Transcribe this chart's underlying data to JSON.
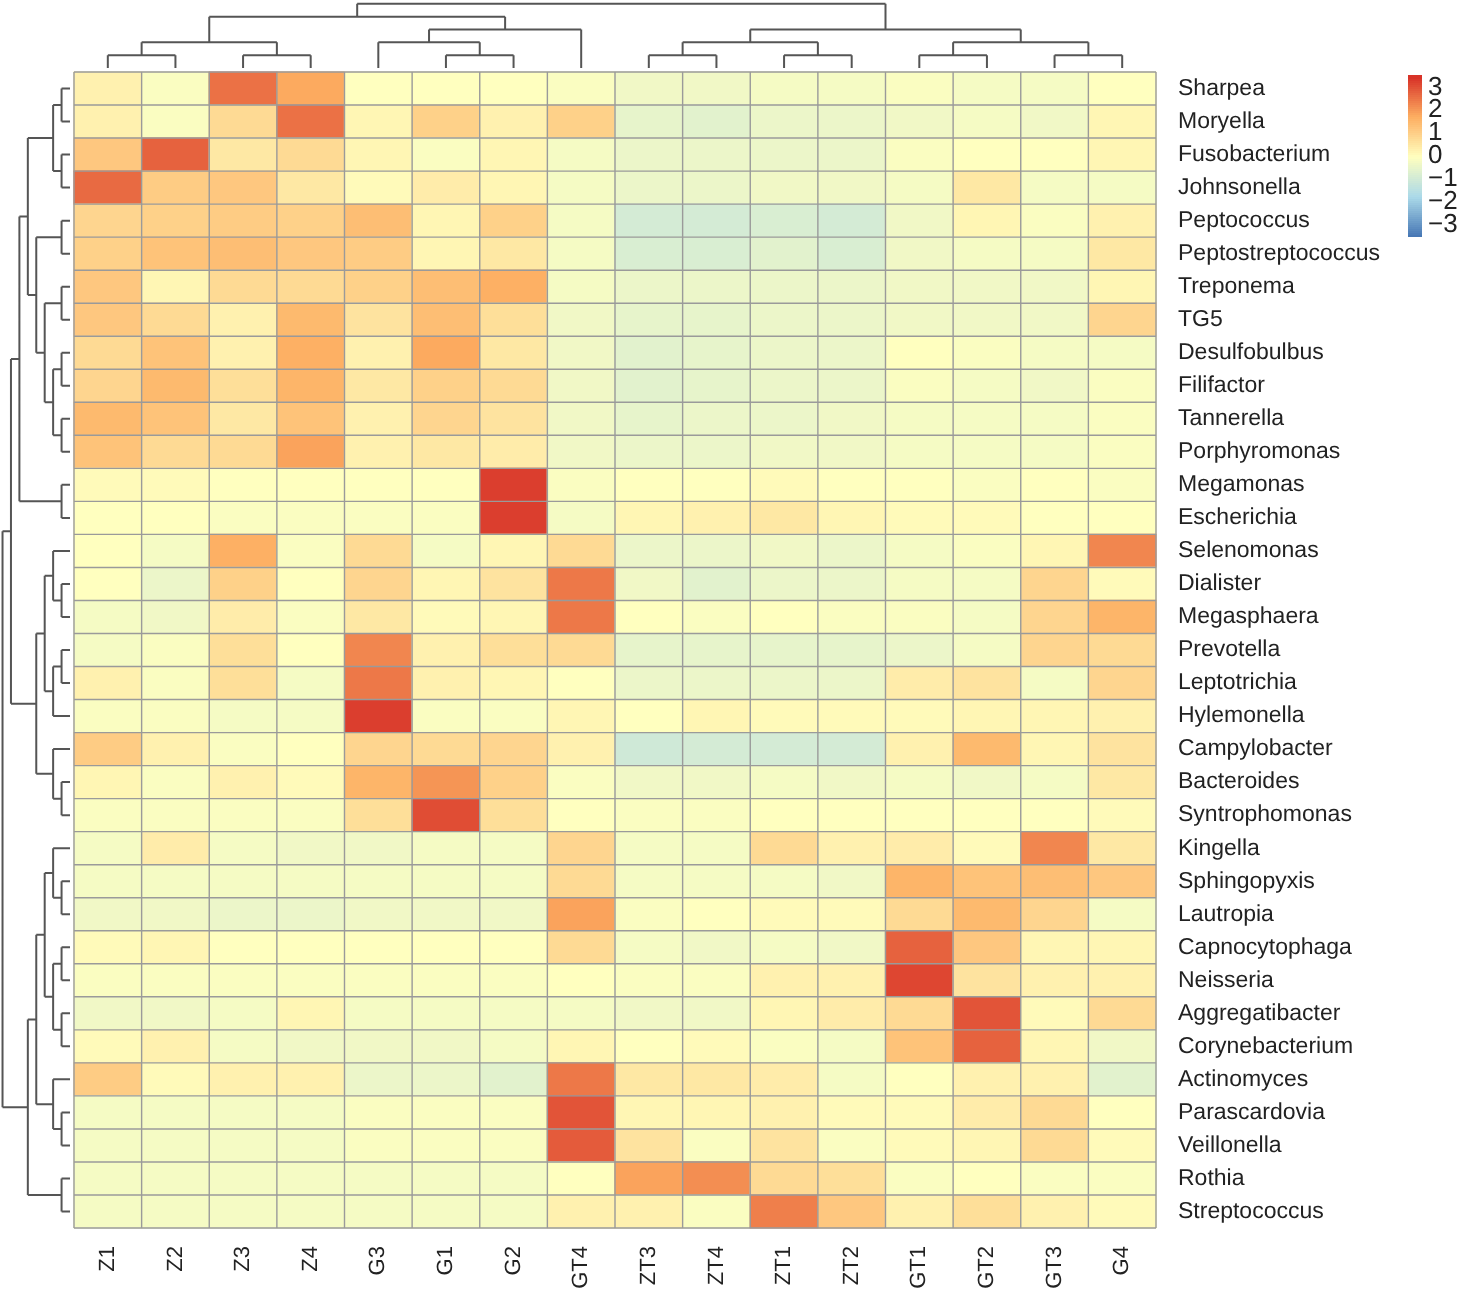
{
  "chart_data": {
    "type": "heatmap",
    "categories": [
      "Z1",
      "Z2",
      "Z3",
      "Z4",
      "G3",
      "G1",
      "G2",
      "GT4",
      "ZT3",
      "ZT4",
      "ZT1",
      "ZT2",
      "GT1",
      "GT2",
      "GT3",
      "G4"
    ],
    "y_categories": [
      "Sharpea",
      "Moryella",
      "Fusobacterium",
      "Johnsonella",
      "Peptococcus",
      "Peptostreptococcus",
      "Treponema",
      "TG5",
      "Desulfobulbus",
      "Filifactor",
      "Tannerella",
      "Porphyromonas",
      "Megamonas",
      "Escherichia",
      "Selenomonas",
      "Dialister",
      "Megasphaera",
      "Prevotella",
      "Leptotrichia",
      "Hylemonella",
      "Campylobacter",
      "Bacteroides",
      "Syntrophomonas",
      "Kingella",
      "Sphingopyxis",
      "Lautropia",
      "Capnocytophaga",
      "Neisseria",
      "Aggregatibacter",
      "Corynebacterium",
      "Actinomyces",
      "Parascardovia",
      "Veillonella",
      "Rothia",
      "Streptococcus"
    ],
    "cells": [
      [
        0.3,
        -0.1,
        2.6,
        1.8,
        0,
        0,
        0,
        -0.1,
        -0.3,
        -0.3,
        -0.2,
        -0.2,
        -0.1,
        -0.2,
        -0.2,
        0
      ],
      [
        0.3,
        -0.1,
        0.8,
        2.6,
        0.2,
        1,
        0.3,
        1,
        -0.5,
        -0.6,
        -0.4,
        -0.4,
        -0.3,
        -0.2,
        -0.3,
        0.2
      ],
      [
        1.2,
        2.8,
        0.5,
        0.8,
        0.2,
        -0.1,
        0.2,
        -0.2,
        -0.4,
        -0.4,
        -0.4,
        -0.4,
        -0.1,
        0,
        0,
        0.2
      ],
      [
        2.7,
        1.1,
        1.2,
        0.5,
        0.1,
        0.4,
        0.2,
        -0.2,
        -0.4,
        -0.4,
        -0.3,
        -0.3,
        -0.2,
        0.5,
        -0.2,
        -0.2
      ],
      [
        0.9,
        1,
        1.1,
        1,
        1.4,
        0.2,
        1,
        -0.2,
        -0.9,
        -0.9,
        -0.8,
        -0.9,
        -0.3,
        0.2,
        -0.1,
        0.3
      ],
      [
        1,
        1.3,
        1.4,
        1.2,
        1.1,
        0.2,
        0.5,
        -0.2,
        -0.8,
        -0.8,
        -0.6,
        -0.8,
        -0.3,
        -0.2,
        -0.2,
        0.5
      ],
      [
        1.2,
        0.2,
        0.8,
        0.8,
        1,
        1.4,
        1.7,
        -0.2,
        -0.4,
        -0.4,
        -0.4,
        -0.4,
        -0.3,
        -0.3,
        -0.3,
        0.2
      ],
      [
        1.2,
        0.8,
        0.3,
        1.5,
        0.6,
        1.4,
        0.7,
        -0.3,
        -0.5,
        -0.5,
        -0.4,
        -0.4,
        -0.3,
        -0.3,
        -0.3,
        0.9
      ],
      [
        0.8,
        1.3,
        0.3,
        1.7,
        0.3,
        1.8,
        0.5,
        -0.3,
        -0.6,
        -0.5,
        -0.4,
        -0.4,
        0,
        -0.1,
        -0.2,
        -0.2
      ],
      [
        0.9,
        1.5,
        0.7,
        1.6,
        0.5,
        1,
        0.8,
        -0.3,
        -0.6,
        -0.5,
        -0.4,
        -0.4,
        -0.1,
        -0.2,
        -0.3,
        -0.1
      ],
      [
        1.5,
        1.3,
        0.5,
        1.3,
        0.3,
        0.9,
        0.6,
        -0.3,
        -0.5,
        -0.4,
        -0.4,
        -0.3,
        -0.2,
        -0.2,
        -0.2,
        -0.1
      ],
      [
        1.3,
        0.8,
        0.8,
        1.9,
        0.3,
        0.5,
        0.4,
        -0.3,
        -0.4,
        -0.4,
        -0.3,
        -0.3,
        -0.2,
        -0.2,
        -0.2,
        -0.1
      ],
      [
        0.1,
        0.1,
        0,
        0,
        0,
        0,
        3.3,
        -0.1,
        0,
        0,
        0.1,
        0,
        0,
        -0.1,
        0,
        -0.1
      ],
      [
        0,
        0,
        -0.1,
        -0.1,
        -0.1,
        -0.1,
        3.3,
        -0.2,
        0.2,
        0.3,
        0.5,
        0.2,
        0.1,
        0.1,
        0,
        0
      ],
      [
        0,
        -0.2,
        1.7,
        -0.1,
        0.8,
        -0.2,
        0.2,
        0.8,
        -0.4,
        -0.4,
        -0.3,
        -0.4,
        -0.2,
        -0.1,
        0.2,
        2.3
      ],
      [
        0,
        -0.4,
        1,
        0,
        0.9,
        0.2,
        0.6,
        2.5,
        -0.3,
        -0.6,
        -0.4,
        -0.4,
        -0.2,
        -0.2,
        0.9,
        0.1
      ],
      [
        -0.2,
        -0.3,
        0.4,
        -0.1,
        0.5,
        0.1,
        0.2,
        2.5,
        0,
        -0.1,
        0,
        -0.1,
        -0.1,
        -0.2,
        0.9,
        1.6
      ],
      [
        -0.2,
        -0.1,
        0.7,
        0,
        2.3,
        0.3,
        0.7,
        0.8,
        -0.5,
        -0.5,
        -0.5,
        -0.5,
        -0.4,
        -0.2,
        0.9,
        0.8
      ],
      [
        0.3,
        -0.1,
        0.7,
        -0.2,
        2.5,
        0.3,
        0.2,
        0,
        -0.4,
        -0.4,
        -0.4,
        -0.4,
        0.4,
        0.6,
        -0.2,
        0.9
      ],
      [
        -0.1,
        -0.1,
        -0.2,
        -0.2,
        3.3,
        -0.1,
        -0.1,
        0.2,
        0,
        0.2,
        0.1,
        0.1,
        0.1,
        0.2,
        0.2,
        0.3
      ],
      [
        1.1,
        0.3,
        -0.1,
        0,
        0.9,
        0.8,
        0.9,
        0.3,
        -1,
        -0.9,
        -0.9,
        -0.9,
        0.3,
        1.5,
        0.2,
        0.6
      ],
      [
        0.2,
        -0.1,
        0.3,
        0.1,
        1.6,
        2.1,
        1,
        -0.1,
        -0.3,
        -0.3,
        -0.2,
        -0.3,
        -0.2,
        -0.3,
        -0.2,
        0.5
      ],
      [
        -0.1,
        -0.1,
        -0.1,
        -0.1,
        0.7,
        3.1,
        0.7,
        0,
        -0.1,
        -0.1,
        0,
        0,
        0,
        0,
        0,
        0.1
      ],
      [
        -0.2,
        0.4,
        -0.2,
        -0.3,
        -0.3,
        -0.2,
        -0.2,
        0.9,
        -0.2,
        -0.2,
        0.8,
        0.3,
        0.4,
        0.1,
        2.3,
        0.5
      ],
      [
        -0.2,
        -0.2,
        -0.2,
        -0.2,
        -0.2,
        -0.2,
        -0.2,
        0.8,
        -0.2,
        -0.2,
        -0.2,
        -0.3,
        1.6,
        1.3,
        1.4,
        1.2
      ],
      [
        -0.3,
        -0.3,
        -0.4,
        -0.4,
        -0.3,
        -0.3,
        -0.3,
        1.9,
        -0.1,
        0,
        0.1,
        0.1,
        0.8,
        1.5,
        0.9,
        -0.2
      ],
      [
        0.1,
        0.2,
        0,
        0,
        0,
        0,
        0,
        0.8,
        -0.2,
        -0.3,
        -0.2,
        -0.3,
        2.8,
        1.2,
        0.2,
        0.2
      ],
      [
        -0.1,
        -0.1,
        -0.1,
        -0.1,
        -0.1,
        -0.1,
        -0.1,
        0,
        -0.1,
        -0.1,
        0.3,
        0.3,
        3.2,
        0.6,
        0.3,
        0.3
      ],
      [
        -0.3,
        -0.3,
        -0.2,
        0.2,
        -0.2,
        -0.2,
        -0.2,
        -0.2,
        -0.3,
        -0.3,
        0.2,
        0.4,
        0.8,
        3,
        0.1,
        0.8
      ],
      [
        0.1,
        0.3,
        -0.2,
        -0.3,
        -0.3,
        -0.3,
        -0.2,
        0.2,
        0,
        0.1,
        -0.1,
        -0.2,
        1.3,
        2.8,
        0.2,
        -0.3
      ],
      [
        1.1,
        0.1,
        0.3,
        0.3,
        -0.4,
        -0.4,
        -0.6,
        2.5,
        0.5,
        0.5,
        0.4,
        -0.2,
        0,
        0.3,
        0.3,
        -0.6
      ],
      [
        -0.2,
        -0.2,
        -0.2,
        -0.2,
        -0.1,
        -0.1,
        -0.1,
        3,
        0.2,
        0.2,
        0.3,
        0.1,
        0.1,
        0.4,
        0.8,
        0
      ],
      [
        -0.2,
        -0.2,
        -0.2,
        -0.2,
        -0.1,
        -0.1,
        -0.1,
        2.9,
        0.6,
        -0.1,
        0.6,
        -0.1,
        0.1,
        0.2,
        0.8,
        0.1
      ],
      [
        -0.2,
        -0.2,
        -0.2,
        -0.2,
        -0.2,
        -0.2,
        -0.2,
        0,
        1.9,
        2.2,
        0.8,
        0.7,
        -0.1,
        0,
        -0.1,
        -0.1
      ],
      [
        -0.2,
        -0.2,
        -0.2,
        -0.2,
        -0.2,
        -0.2,
        -0.2,
        0.3,
        0.3,
        -0.1,
        2.4,
        1.2,
        0.3,
        0.7,
        0.3,
        0.1
      ]
    ],
    "clim": [
      -3.5,
      3.5
    ],
    "grid": true,
    "cticks": [
      3,
      2,
      1,
      0,
      -1,
      -2,
      -3
    ]
  }
}
